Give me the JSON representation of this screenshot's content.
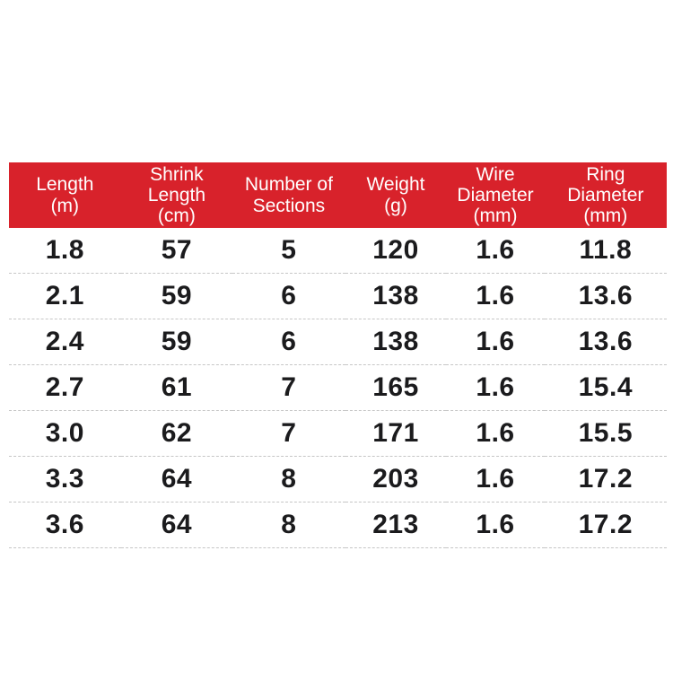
{
  "page": {
    "background": "#ffffff",
    "description": "Product specification table"
  },
  "colors": {
    "header_bg": "#d8222b",
    "header_text": "#ffffff",
    "body_text": "#1b1b1d",
    "row_separator": "#c6c6c6"
  },
  "chart_data": {
    "type": "table",
    "columns": [
      "Length\n(m)",
      "Shrink\nLength\n(cm)",
      "Number of\nSections",
      "Weight\n(g)",
      "Wire\nDiameter\n(mm)",
      "Ring\nDiameter\n(mm)"
    ],
    "rows": [
      [
        "1.8",
        "57",
        "5",
        "120",
        "1.6",
        "11.8"
      ],
      [
        "2.1",
        "59",
        "6",
        "138",
        "1.6",
        "13.6"
      ],
      [
        "2.4",
        "59",
        "6",
        "138",
        "1.6",
        "13.6"
      ],
      [
        "2.7",
        "61",
        "7",
        "165",
        "1.6",
        "15.4"
      ],
      [
        "3.0",
        "62",
        "7",
        "171",
        "1.6",
        "15.5"
      ],
      [
        "3.3",
        "64",
        "8",
        "203",
        "1.6",
        "17.2"
      ],
      [
        "3.6",
        "64",
        "8",
        "213",
        "1.6",
        "17.2"
      ]
    ]
  }
}
